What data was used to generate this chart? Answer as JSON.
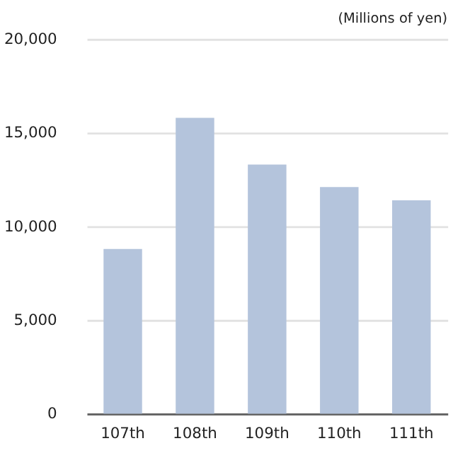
{
  "chart_data": {
    "type": "bar",
    "ylabel": "(Millions of yen)",
    "categories": [
      "107th",
      "108th",
      "109th",
      "110th",
      "111th"
    ],
    "values": [
      8800,
      15800,
      13300,
      12100,
      11400
    ],
    "color": "#b4c4dc",
    "ylim": [
      0,
      20000
    ],
    "yticks": [
      0,
      {
        "value": 5000,
        "label": "5,000"
      },
      {
        "value": 10000,
        "label": "10,000"
      },
      {
        "value": 15000,
        "label": "15,000"
      },
      {
        "value": 20000,
        "label": "20,000"
      }
    ],
    "grid": "y"
  }
}
